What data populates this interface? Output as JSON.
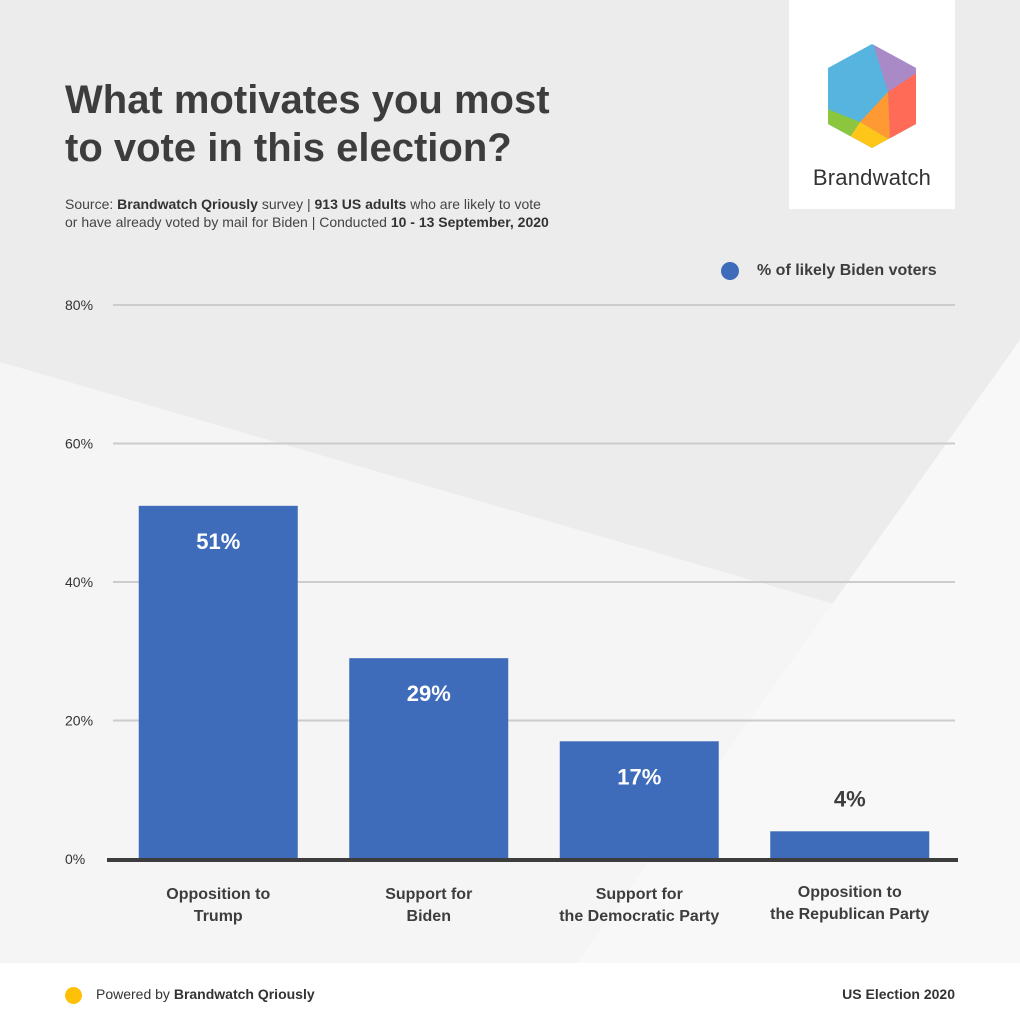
{
  "title_line1": "What motivates you most",
  "title_line2": "to vote in this election?",
  "source": {
    "prefix": "Source: ",
    "org": "Brandwatch Qriously",
    "mid1": " survey | ",
    "sample": "913 US adults",
    "mid2": " who are likely to vote",
    "line2_prefix": "or have already voted by mail for Biden | Conducted ",
    "dates": "10 - 13 September, 2020"
  },
  "logo": {
    "text": "Brandwatch",
    "icon": "brandwatch-hexagon-logo"
  },
  "legend": {
    "label": "% of likely Biden voters",
    "color": "#3f6cba"
  },
  "chart_data": {
    "type": "bar",
    "categories": [
      [
        "Opposition to",
        "Trump"
      ],
      [
        "Support for",
        "Biden"
      ],
      [
        "Support for",
        "the Democratic Party"
      ],
      [
        "Opposition to",
        "the Republican Party"
      ]
    ],
    "series": [
      {
        "name": "% of likely Biden voters",
        "values": [
          51,
          29,
          17,
          4
        ],
        "color": "#3f6cba"
      }
    ],
    "data_labels": [
      "51%",
      "29%",
      "17%",
      "4%"
    ],
    "yticks": [
      0,
      20,
      40,
      60,
      80
    ],
    "ytick_labels": [
      "0%",
      "20%",
      "40%",
      "60%",
      "80%"
    ],
    "ylim": [
      0,
      80
    ],
    "grid": true,
    "legend_position": "top-right"
  },
  "footer": {
    "powered_prefix": "Powered by ",
    "powered_brand": "Brandwatch Qriously",
    "right": "US Election 2020",
    "dot_color": "#ffc107"
  }
}
